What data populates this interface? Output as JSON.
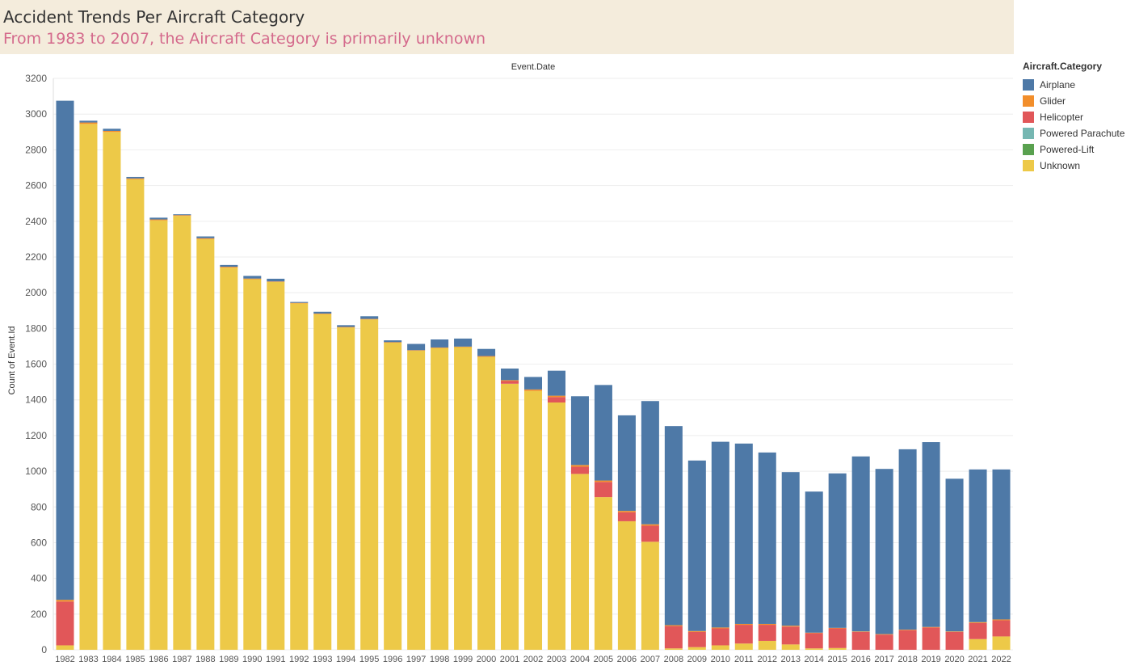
{
  "header": {
    "title": "Accident Trends Per Aircraft Category",
    "subtitle": "From 1983 to 2007, the Aircraft Category is primarily unknown"
  },
  "legend": {
    "title": "Aircraft.Category",
    "items": [
      {
        "label": "Airplane",
        "color": "#4e79a7"
      },
      {
        "label": "Glider",
        "color": "#f28e2b"
      },
      {
        "label": "Helicopter",
        "color": "#e15759"
      },
      {
        "label": "Powered Parachute",
        "color": "#76b7b2"
      },
      {
        "label": "Powered-Lift",
        "color": "#59a14f"
      },
      {
        "label": "Unknown",
        "color": "#edc948"
      }
    ]
  },
  "chart_data": {
    "type": "bar",
    "stacked": true,
    "title": "",
    "column_header": "Event.Date",
    "xlabel": "",
    "ylabel": "Count of Event.Id",
    "ylim": [
      0,
      3200
    ],
    "yticks": [
      0,
      200,
      400,
      600,
      800,
      1000,
      1200,
      1400,
      1600,
      1800,
      2000,
      2200,
      2400,
      2600,
      2800,
      3000,
      3200
    ],
    "grid": true,
    "legend_position": "right",
    "categories": [
      "1982",
      "1983",
      "1984",
      "1985",
      "1986",
      "1987",
      "1988",
      "1989",
      "1990",
      "1991",
      "1992",
      "1993",
      "1994",
      "1995",
      "1996",
      "1997",
      "1998",
      "1999",
      "2000",
      "2001",
      "2002",
      "2003",
      "2004",
      "2005",
      "2006",
      "2007",
      "2008",
      "2009",
      "2010",
      "2011",
      "2012",
      "2013",
      "2014",
      "2015",
      "2016",
      "2017",
      "2018",
      "2019",
      "2020",
      "2021",
      "2022"
    ],
    "series": [
      {
        "name": "Unknown",
        "color": "#edc948",
        "values": [
          25,
          2945,
          2900,
          2635,
          2405,
          2430,
          2300,
          2140,
          2075,
          2060,
          1940,
          1880,
          1805,
          1850,
          1720,
          1675,
          1690,
          1695,
          1640,
          1490,
          1450,
          1385,
          985,
          855,
          720,
          605,
          8,
          15,
          25,
          35,
          50,
          30,
          8,
          10,
          0,
          0,
          0,
          0,
          0,
          60,
          75
        ]
      },
      {
        "name": "Powered-Lift",
        "color": "#59a14f",
        "values": [
          0,
          0,
          0,
          0,
          0,
          0,
          0,
          0,
          0,
          0,
          0,
          0,
          0,
          0,
          0,
          0,
          0,
          0,
          0,
          0,
          0,
          0,
          0,
          0,
          0,
          0,
          0,
          0,
          0,
          0,
          0,
          0,
          0,
          0,
          0,
          0,
          0,
          0,
          0,
          0,
          0
        ]
      },
      {
        "name": "Powered Parachute",
        "color": "#76b7b2",
        "values": [
          0,
          0,
          0,
          0,
          0,
          0,
          0,
          0,
          0,
          0,
          0,
          0,
          0,
          0,
          0,
          0,
          0,
          0,
          0,
          0,
          0,
          0,
          0,
          0,
          0,
          0,
          0,
          0,
          0,
          0,
          0,
          0,
          0,
          0,
          0,
          0,
          0,
          0,
          0,
          0,
          0
        ]
      },
      {
        "name": "Helicopter",
        "color": "#e15759",
        "values": [
          245,
          0,
          0,
          0,
          0,
          0,
          0,
          0,
          0,
          0,
          0,
          0,
          0,
          0,
          0,
          0,
          0,
          0,
          0,
          15,
          0,
          30,
          40,
          85,
          50,
          90,
          125,
          85,
          95,
          105,
          90,
          100,
          85,
          110,
          100,
          85,
          110,
          125,
          100,
          90,
          90
        ]
      },
      {
        "name": "Glider",
        "color": "#f28e2b",
        "values": [
          10,
          8,
          6,
          5,
          5,
          4,
          5,
          5,
          4,
          3,
          3,
          3,
          3,
          3,
          3,
          3,
          3,
          3,
          5,
          5,
          8,
          8,
          10,
          8,
          8,
          8,
          5,
          5,
          5,
          5,
          5,
          5,
          3,
          3,
          3,
          3,
          3,
          3,
          3,
          5,
          5
        ]
      },
      {
        "name": "Airplane",
        "color": "#4e79a7",
        "values": [
          2795,
          10,
          12,
          8,
          10,
          5,
          10,
          10,
          15,
          15,
          5,
          10,
          10,
          15,
          10,
          35,
          45,
          45,
          40,
          65,
          70,
          140,
          385,
          535,
          535,
          690,
          1115,
          955,
          1040,
          1010,
          960,
          860,
          790,
          865,
          980,
          925,
          1010,
          1035,
          855,
          855,
          840
        ]
      }
    ]
  }
}
